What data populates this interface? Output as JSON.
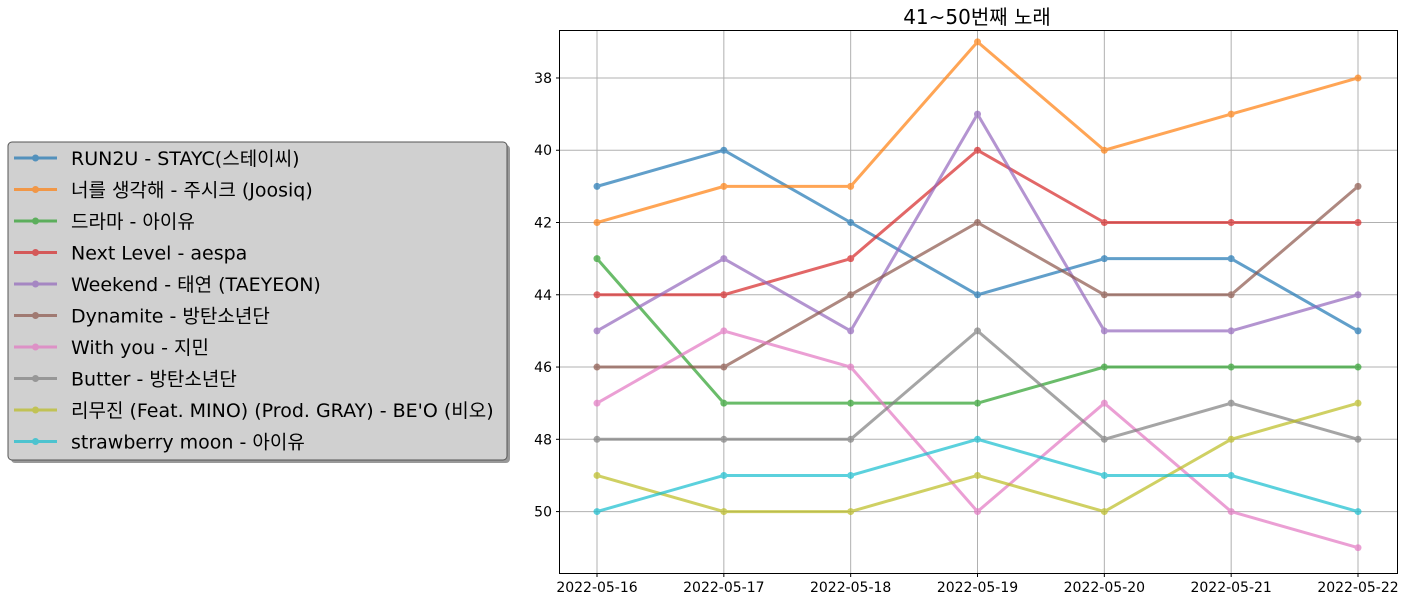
{
  "chart_data": {
    "type": "line",
    "title": "41~50번째 노래",
    "xlabel": "",
    "ylabel": "",
    "categories": [
      "2022-05-16",
      "2022-05-17",
      "2022-05-18",
      "2022-05-19",
      "2022-05-20",
      "2022-05-21",
      "2022-05-22"
    ],
    "y_ticks": [
      38,
      40,
      42,
      44,
      46,
      48,
      50
    ],
    "ylim": [
      36.7,
      51.7
    ],
    "y_inverted": true,
    "grid": true,
    "legend_position": "left, outside plot",
    "series": [
      {
        "name": "RUN2U - STAYC(스테이씨)",
        "color": "#1f77b4",
        "values": [
          41,
          40,
          42,
          44,
          43,
          43,
          45
        ]
      },
      {
        "name": "너를 생각해 - 주시크 (Joosiq)",
        "color": "#ff7f0e",
        "values": [
          42,
          41,
          41,
          37,
          40,
          39,
          38
        ]
      },
      {
        "name": "드라마 - 아이유",
        "color": "#2ca02c",
        "values": [
          43,
          47,
          47,
          47,
          46,
          46,
          46
        ]
      },
      {
        "name": "Next Level - aespa",
        "color": "#d62728",
        "values": [
          44,
          44,
          43,
          40,
          42,
          42,
          42
        ]
      },
      {
        "name": "Weekend - 태연 (TAEYEON)",
        "color": "#9467bd",
        "values": [
          45,
          43,
          45,
          39,
          45,
          45,
          44
        ]
      },
      {
        "name": "Dynamite - 방탄소년단",
        "color": "#8c564b",
        "values": [
          46,
          46,
          44,
          42,
          44,
          44,
          41
        ]
      },
      {
        "name": "With you - 지민",
        "color": "#e377c2",
        "values": [
          47,
          45,
          46,
          50,
          47,
          50,
          51
        ]
      },
      {
        "name": "Butter - 방탄소년단",
        "color": "#7f7f7f",
        "values": [
          48,
          48,
          48,
          45,
          48,
          47,
          48
        ]
      },
      {
        "name": "리무진 (Feat. MINO) (Prod. GRAY) - BE'O (비오)",
        "color": "#bcbd22",
        "values": [
          49,
          50,
          50,
          49,
          50,
          48,
          47
        ]
      },
      {
        "name": "strawberry moon - 아이유",
        "color": "#17becf",
        "values": [
          50,
          49,
          49,
          48,
          49,
          49,
          50
        ]
      }
    ]
  }
}
